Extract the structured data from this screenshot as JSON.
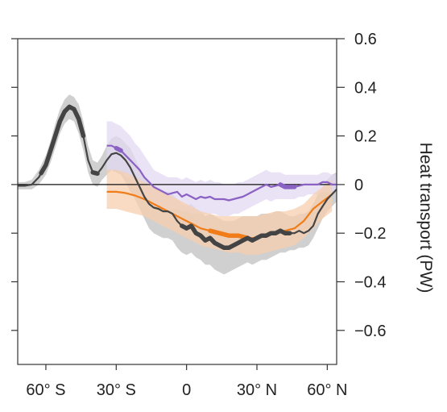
{
  "chart_data": {
    "type": "line",
    "title": "",
    "xlabel": "",
    "ylabel": "Heat transport (PW)",
    "xlim": [
      -72,
      64
    ],
    "ylim": [
      -0.74,
      0.6
    ],
    "grid": false,
    "zero_line": true,
    "x_ticks": [
      {
        "value": -60,
        "label": "60° S"
      },
      {
        "value": -30,
        "label": "30° S"
      },
      {
        "value": 0,
        "label": "0"
      },
      {
        "value": 30,
        "label": "30° N"
      },
      {
        "value": 60,
        "label": "60° N"
      }
    ],
    "y_ticks": [
      {
        "value": 0.6,
        "label": "0.6"
      },
      {
        "value": 0.4,
        "label": "0.4"
      },
      {
        "value": 0.2,
        "label": "0.2"
      },
      {
        "value": 0,
        "label": "0"
      },
      {
        "value": -0.2,
        "label": "−0.2"
      },
      {
        "value": -0.4,
        "label": "−0.4"
      },
      {
        "value": -0.6,
        "label": "−0.6"
      }
    ],
    "series": [
      {
        "color": "#444444",
        "band_color": "#c8c8c8",
        "thick_segments": [
          [
            -62,
            -44
          ],
          [
            -40,
            -38
          ],
          [
            -2,
            44
          ]
        ],
        "x": [
          -72,
          -69,
          -66,
          -63,
          -60,
          -58,
          -56,
          -54,
          -52,
          -50,
          -48,
          -46,
          -44,
          -42,
          -40,
          -38,
          -36,
          -34,
          -32,
          -30,
          -28,
          -26,
          -24,
          -22,
          -20,
          -18,
          -16,
          -14,
          -12,
          -10,
          -8,
          -6,
          -4,
          -2,
          0,
          2,
          4,
          6,
          8,
          10,
          12,
          14,
          16,
          18,
          20,
          22,
          24,
          26,
          28,
          30,
          32,
          34,
          36,
          38,
          40,
          42,
          44,
          46,
          48,
          50,
          52,
          54,
          56,
          58,
          60,
          62,
          64
        ],
        "y": [
          -0.005,
          -0.005,
          0.0,
          0.03,
          0.08,
          0.14,
          0.2,
          0.26,
          0.3,
          0.32,
          0.31,
          0.27,
          0.2,
          0.1,
          0.05,
          0.045,
          0.07,
          0.1,
          0.125,
          0.13,
          0.12,
          0.1,
          0.07,
          0.03,
          -0.01,
          -0.05,
          -0.08,
          -0.095,
          -0.1,
          -0.11,
          -0.11,
          -0.12,
          -0.15,
          -0.17,
          -0.18,
          -0.17,
          -0.2,
          -0.21,
          -0.23,
          -0.22,
          -0.24,
          -0.25,
          -0.26,
          -0.26,
          -0.25,
          -0.24,
          -0.23,
          -0.22,
          -0.23,
          -0.22,
          -0.21,
          -0.21,
          -0.2,
          -0.2,
          -0.19,
          -0.2,
          -0.2,
          -0.2,
          -0.19,
          -0.2,
          -0.19,
          -0.17,
          -0.12,
          -0.09,
          -0.06,
          -0.04,
          -0.02
        ],
        "lower": [
          -0.02,
          -0.02,
          -0.02,
          0.0,
          0.04,
          0.09,
          0.15,
          0.21,
          0.25,
          0.27,
          0.26,
          0.21,
          0.14,
          0.05,
          0.0,
          -0.01,
          0.02,
          0.04,
          0.06,
          0.05,
          0.04,
          0.01,
          -0.03,
          -0.06,
          -0.1,
          -0.14,
          -0.18,
          -0.2,
          -0.21,
          -0.22,
          -0.22,
          -0.23,
          -0.26,
          -0.28,
          -0.29,
          -0.28,
          -0.3,
          -0.31,
          -0.33,
          -0.33,
          -0.35,
          -0.36,
          -0.37,
          -0.36,
          -0.35,
          -0.34,
          -0.33,
          -0.32,
          -0.33,
          -0.32,
          -0.31,
          -0.31,
          -0.3,
          -0.29,
          -0.28,
          -0.28,
          -0.27,
          -0.27,
          -0.26,
          -0.26,
          -0.25,
          -0.22,
          -0.18,
          -0.14,
          -0.11,
          -0.09,
          -0.07
        ],
        "upper": [
          0.01,
          0.01,
          0.02,
          0.06,
          0.12,
          0.18,
          0.25,
          0.31,
          0.35,
          0.37,
          0.36,
          0.33,
          0.26,
          0.16,
          0.1,
          0.09,
          0.12,
          0.16,
          0.19,
          0.2,
          0.19,
          0.17,
          0.15,
          0.11,
          0.07,
          0.03,
          0.0,
          -0.01,
          -0.02,
          -0.03,
          -0.03,
          -0.04,
          -0.06,
          -0.08,
          -0.09,
          -0.08,
          -0.1,
          -0.11,
          -0.13,
          -0.12,
          -0.13,
          -0.14,
          -0.15,
          -0.15,
          -0.15,
          -0.14,
          -0.13,
          -0.13,
          -0.13,
          -0.13,
          -0.12,
          -0.12,
          -0.12,
          -0.11,
          -0.11,
          -0.12,
          -0.13,
          -0.13,
          -0.12,
          -0.12,
          -0.11,
          -0.08,
          -0.04,
          -0.01,
          0.02,
          0.04,
          0.05
        ]
      },
      {
        "color": "#8a62c4",
        "band_color": "#e3d8f1",
        "thick_segments": [
          [
            -30,
            -28
          ],
          [
            40,
            46
          ]
        ],
        "x": [
          -34,
          -32,
          -30,
          -28,
          -26,
          -24,
          -22,
          -20,
          -18,
          -16,
          -14,
          -12,
          -10,
          -8,
          -6,
          -4,
          -2,
          0,
          2,
          4,
          6,
          8,
          10,
          12,
          14,
          16,
          18,
          20,
          22,
          24,
          26,
          28,
          30,
          32,
          34,
          36,
          38,
          40,
          42,
          44,
          46,
          48,
          50,
          52,
          54,
          56,
          58,
          60,
          62,
          64
        ],
        "y": [
          0.16,
          0.16,
          0.15,
          0.14,
          0.12,
          0.1,
          0.08,
          0.06,
          0.03,
          0.01,
          -0.01,
          -0.02,
          -0.03,
          -0.04,
          -0.035,
          -0.03,
          -0.05,
          -0.04,
          -0.05,
          -0.06,
          -0.05,
          -0.055,
          -0.05,
          -0.06,
          -0.06,
          -0.06,
          -0.065,
          -0.06,
          -0.055,
          -0.05,
          -0.04,
          -0.03,
          -0.02,
          -0.01,
          0.0,
          -0.01,
          -0.005,
          0.0,
          -0.01,
          -0.01,
          -0.01,
          -0.005,
          0.0,
          0.0,
          0.0,
          0.0,
          0.01,
          0.01,
          0.0,
          0.0
        ],
        "lower": [
          0.06,
          0.06,
          0.06,
          0.05,
          0.03,
          0.02,
          0.0,
          -0.02,
          -0.04,
          -0.06,
          -0.08,
          -0.09,
          -0.1,
          -0.11,
          -0.1,
          -0.1,
          -0.11,
          -0.11,
          -0.12,
          -0.12,
          -0.12,
          -0.12,
          -0.12,
          -0.12,
          -0.13,
          -0.13,
          -0.13,
          -0.12,
          -0.12,
          -0.11,
          -0.1,
          -0.09,
          -0.08,
          -0.07,
          -0.06,
          -0.07,
          -0.06,
          -0.06,
          -0.06,
          -0.06,
          -0.06,
          -0.05,
          -0.05,
          -0.04,
          -0.04,
          -0.04,
          -0.03,
          -0.03,
          -0.03,
          -0.03
        ],
        "upper": [
          0.26,
          0.26,
          0.25,
          0.24,
          0.22,
          0.2,
          0.17,
          0.15,
          0.12,
          0.09,
          0.06,
          0.05,
          0.04,
          0.03,
          0.03,
          0.03,
          0.02,
          0.03,
          0.02,
          0.01,
          0.02,
          0.01,
          0.02,
          0.01,
          0.01,
          0.0,
          0.0,
          0.0,
          0.01,
          0.01,
          0.02,
          0.03,
          0.04,
          0.05,
          0.06,
          0.05,
          0.05,
          0.05,
          0.04,
          0.04,
          0.04,
          0.04,
          0.04,
          0.04,
          0.04,
          0.04,
          0.05,
          0.05,
          0.04,
          0.04
        ]
      },
      {
        "color": "#f07d1a",
        "band_color": "#f6cfae",
        "thick_segments": [
          [
            10,
            26
          ]
        ],
        "x": [
          -34,
          -30,
          -26,
          -22,
          -18,
          -14,
          -10,
          -6,
          -2,
          2,
          6,
          10,
          14,
          18,
          22,
          26,
          30,
          34,
          38,
          42,
          46,
          50,
          54,
          58,
          62
        ],
        "y": [
          -0.03,
          -0.03,
          -0.035,
          -0.045,
          -0.06,
          -0.08,
          -0.1,
          -0.12,
          -0.14,
          -0.16,
          -0.18,
          -0.19,
          -0.2,
          -0.21,
          -0.21,
          -0.22,
          -0.22,
          -0.21,
          -0.2,
          -0.19,
          -0.18,
          -0.15,
          -0.1,
          -0.07,
          -0.04
        ],
        "lower": [
          -0.1,
          -0.1,
          -0.11,
          -0.12,
          -0.13,
          -0.15,
          -0.17,
          -0.19,
          -0.21,
          -0.23,
          -0.25,
          -0.26,
          -0.27,
          -0.28,
          -0.28,
          -0.29,
          -0.29,
          -0.28,
          -0.27,
          -0.26,
          -0.25,
          -0.22,
          -0.18,
          -0.14,
          -0.11
        ],
        "upper": [
          0.06,
          0.06,
          0.05,
          0.03,
          0.01,
          -0.01,
          -0.03,
          -0.05,
          -0.07,
          -0.09,
          -0.11,
          -0.12,
          -0.13,
          -0.13,
          -0.13,
          -0.13,
          -0.13,
          -0.12,
          -0.11,
          -0.11,
          -0.1,
          -0.08,
          -0.04,
          -0.01,
          0.02
        ]
      }
    ]
  }
}
